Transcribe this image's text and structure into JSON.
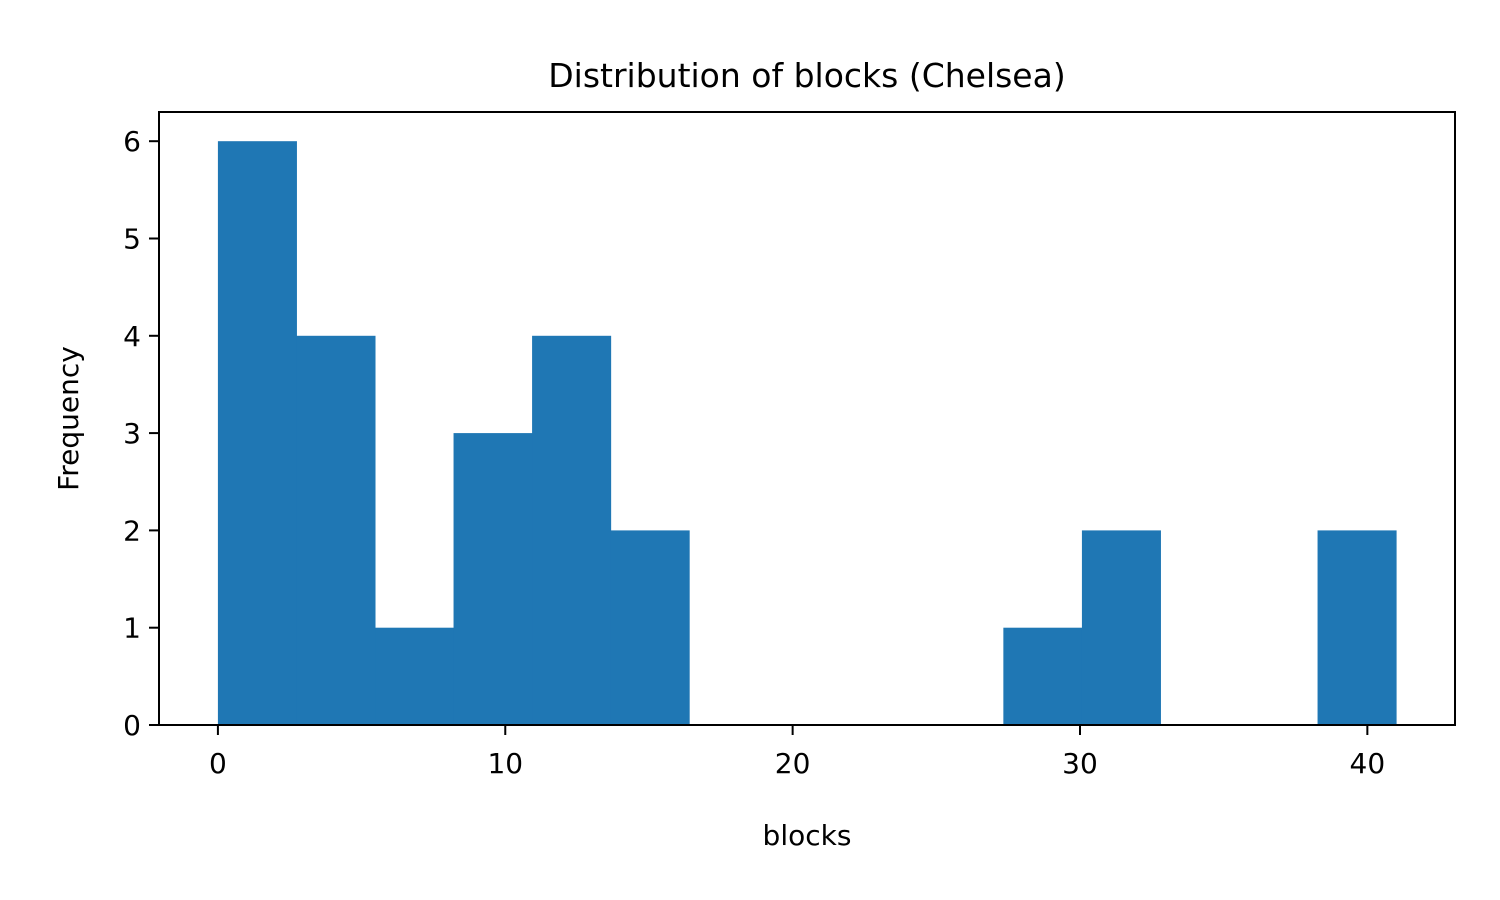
{
  "chart_data": {
    "type": "bar",
    "title": "Distribution of blocks (Chelsea)",
    "xlabel": "blocks",
    "ylabel": "Frequency",
    "bin_edges": [
      0,
      2.733,
      5.467,
      8.2,
      10.933,
      13.667,
      16.4,
      19.133,
      21.867,
      24.6,
      27.333,
      30.067,
      32.8,
      35.533,
      38.267,
      41
    ],
    "counts": [
      6,
      4,
      1,
      3,
      4,
      2,
      0,
      0,
      0,
      0,
      1,
      2,
      0,
      0,
      2
    ],
    "xlim": [
      -2.05,
      43.05
    ],
    "ylim": [
      0,
      6.3
    ],
    "xticks": [
      0,
      10,
      20,
      30,
      40
    ],
    "yticks": [
      0,
      1,
      2,
      3,
      4,
      5,
      6
    ],
    "bar_color": "#1f77b4",
    "grid": false
  }
}
